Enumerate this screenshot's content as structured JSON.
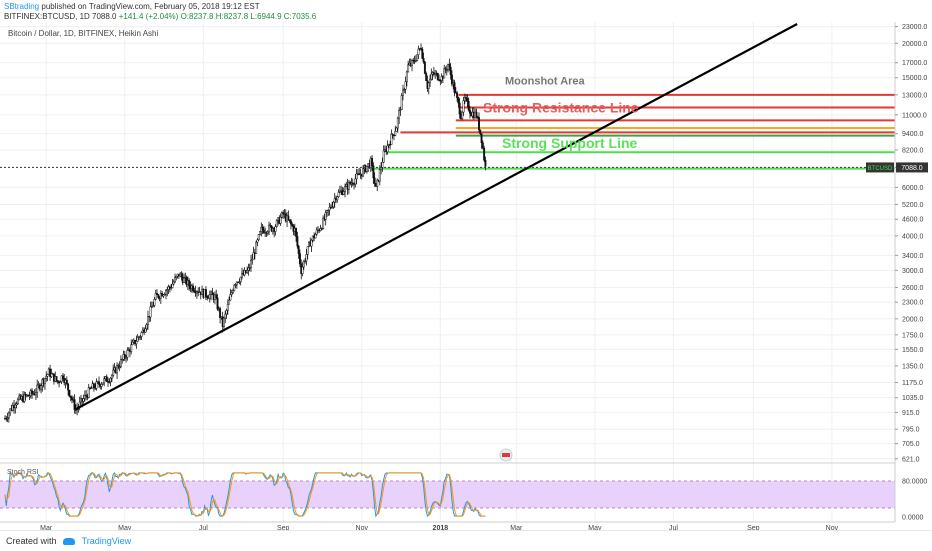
{
  "header": {
    "author": "SBtrading",
    "publish_text": "published on TradingView.com, February 05, 2018 19:12 EST",
    "symbol": "BITFINEX:BTCUSD, 1D",
    "last": "7088.0",
    "change": "+141.4 (+2.04%)",
    "ohlc": "O:8237.8 H:8237.8 L:6944.9 C:7035.6"
  },
  "chart_data": {
    "type": "candlestick",
    "title": "Bitcoin / Dollar, 1D, BITFINEX, Heikin Ashi",
    "y_scale": "log",
    "ylim": [
      620,
      23500
    ],
    "xlim": [
      "2017-01-28",
      "2018-12-20"
    ],
    "y_ticks": [
      "23000.0",
      "20000.0",
      "17000.0",
      "15000.0",
      "13000.0",
      "11000.0",
      "9400.0",
      "8200.0",
      "7088.0",
      "6000.0",
      "5200.0",
      "4600.0",
      "4000.0",
      "3400.0",
      "3000.0",
      "2600.0",
      "2300.0",
      "2000.0",
      "1750.0",
      "1550.0",
      "1350.0",
      "1175.0",
      "1035.0",
      "915.0",
      "795.0",
      "705.0",
      "621.0"
    ],
    "x_ticks": [
      {
        "label": "Mar",
        "date": "2017-03-01"
      },
      {
        "label": "May",
        "date": "2017-05-01"
      },
      {
        "label": "Jul",
        "date": "2017-07-01"
      },
      {
        "label": "Sep",
        "date": "2017-09-01"
      },
      {
        "label": "Nov",
        "date": "2017-11-01"
      },
      {
        "label": "2018",
        "date": "2018-01-01"
      },
      {
        "label": "Mar",
        "date": "2018-03-01"
      },
      {
        "label": "May",
        "date": "2018-05-01"
      },
      {
        "label": "Jul",
        "date": "2018-07-01"
      },
      {
        "label": "Sep",
        "date": "2018-09-01"
      },
      {
        "label": "Nov",
        "date": "2018-11-01"
      }
    ],
    "price_path": [
      [
        "2017-01-28",
        870
      ],
      [
        "2017-02-05",
        1000
      ],
      [
        "2017-02-20",
        1080
      ],
      [
        "2017-03-03",
        1280
      ],
      [
        "2017-03-10",
        1180
      ],
      [
        "2017-03-14",
        1250
      ],
      [
        "2017-03-24",
        935
      ],
      [
        "2017-04-05",
        1120
      ],
      [
        "2017-04-20",
        1230
      ],
      [
        "2017-05-05",
        1560
      ],
      [
        "2017-05-15",
        1800
      ],
      [
        "2017-05-25",
        2400
      ],
      [
        "2017-06-05",
        2600
      ],
      [
        "2017-06-12",
        2900
      ],
      [
        "2017-06-20",
        2650
      ],
      [
        "2017-07-01",
        2480
      ],
      [
        "2017-07-10",
        2400
      ],
      [
        "2017-07-16",
        1900
      ],
      [
        "2017-07-25",
        2700
      ],
      [
        "2017-08-05",
        3000
      ],
      [
        "2017-08-15",
        4200
      ],
      [
        "2017-08-25",
        4300
      ],
      [
        "2017-09-01",
        4800
      ],
      [
        "2017-09-10",
        4200
      ],
      [
        "2017-09-15",
        3000
      ],
      [
        "2017-09-22",
        3800
      ],
      [
        "2017-10-01",
        4400
      ],
      [
        "2017-10-12",
        5600
      ],
      [
        "2017-10-20",
        6000
      ],
      [
        "2017-11-01",
        6800
      ],
      [
        "2017-11-08",
        7400
      ],
      [
        "2017-11-12",
        5900
      ],
      [
        "2017-11-18",
        7900
      ],
      [
        "2017-11-28",
        10000
      ],
      [
        "2017-12-07",
        16500
      ],
      [
        "2017-12-11",
        17000
      ],
      [
        "2017-12-17",
        19500
      ],
      [
        "2017-12-22",
        14000
      ],
      [
        "2017-12-26",
        15500
      ],
      [
        "2018-01-02",
        15000
      ],
      [
        "2018-01-07",
        16800
      ],
      [
        "2018-01-12",
        13500
      ],
      [
        "2018-01-17",
        11000
      ],
      [
        "2018-01-20",
        12500
      ],
      [
        "2018-01-25",
        11200
      ],
      [
        "2018-01-29",
        11000
      ],
      [
        "2018-02-02",
        9000
      ],
      [
        "2018-02-05",
        7088
      ]
    ],
    "trendline": {
      "from": [
        "2017-03-24",
        940
      ],
      "to": [
        "2018-10-05",
        23500
      ]
    },
    "horizontal_lines": [
      {
        "price": 13000,
        "from": "2018-01-15",
        "color": "#e53935"
      },
      {
        "price": 11700,
        "from": "2018-01-15",
        "color": "#e53935"
      },
      {
        "price": 10500,
        "from": "2018-01-13",
        "color": "#e53935"
      },
      {
        "price": 9850,
        "from": "2018-01-13",
        "color": "#f9a825"
      },
      {
        "price": 9500,
        "from": "2017-12-01",
        "color": "#e53935"
      },
      {
        "price": 9250,
        "from": "2018-01-13",
        "color": "#43a047"
      },
      {
        "price": 8050,
        "from": "2017-11-20",
        "color": "#4cdf4c"
      },
      {
        "price": 7020,
        "from": "2017-11-08",
        "color": "#4cdf4c"
      }
    ],
    "annotations": [
      {
        "text": "Moonshot Area",
        "color": "#777777"
      },
      {
        "text": "Strong Resistance Line",
        "color": "#e06060"
      },
      {
        "text": "Strong Support Line",
        "color": "#5ce05c"
      }
    ],
    "last_price": 7088.0,
    "price_badge_label": "BTCUSD",
    "oscillator": {
      "label": "Stoch RSI",
      "band": [
        20,
        80
      ],
      "ticks": [
        "80.0000",
        "0.0000"
      ]
    }
  },
  "footer": {
    "created_with": "Created with",
    "brand": "TradingView"
  },
  "colors": {
    "candle": "#111111",
    "grid": "#f0f0f0",
    "trendline": "#000000",
    "band_fill": "#e8d2fb",
    "stoch_k": "#2196f3",
    "stoch_d": "#ff9800"
  }
}
